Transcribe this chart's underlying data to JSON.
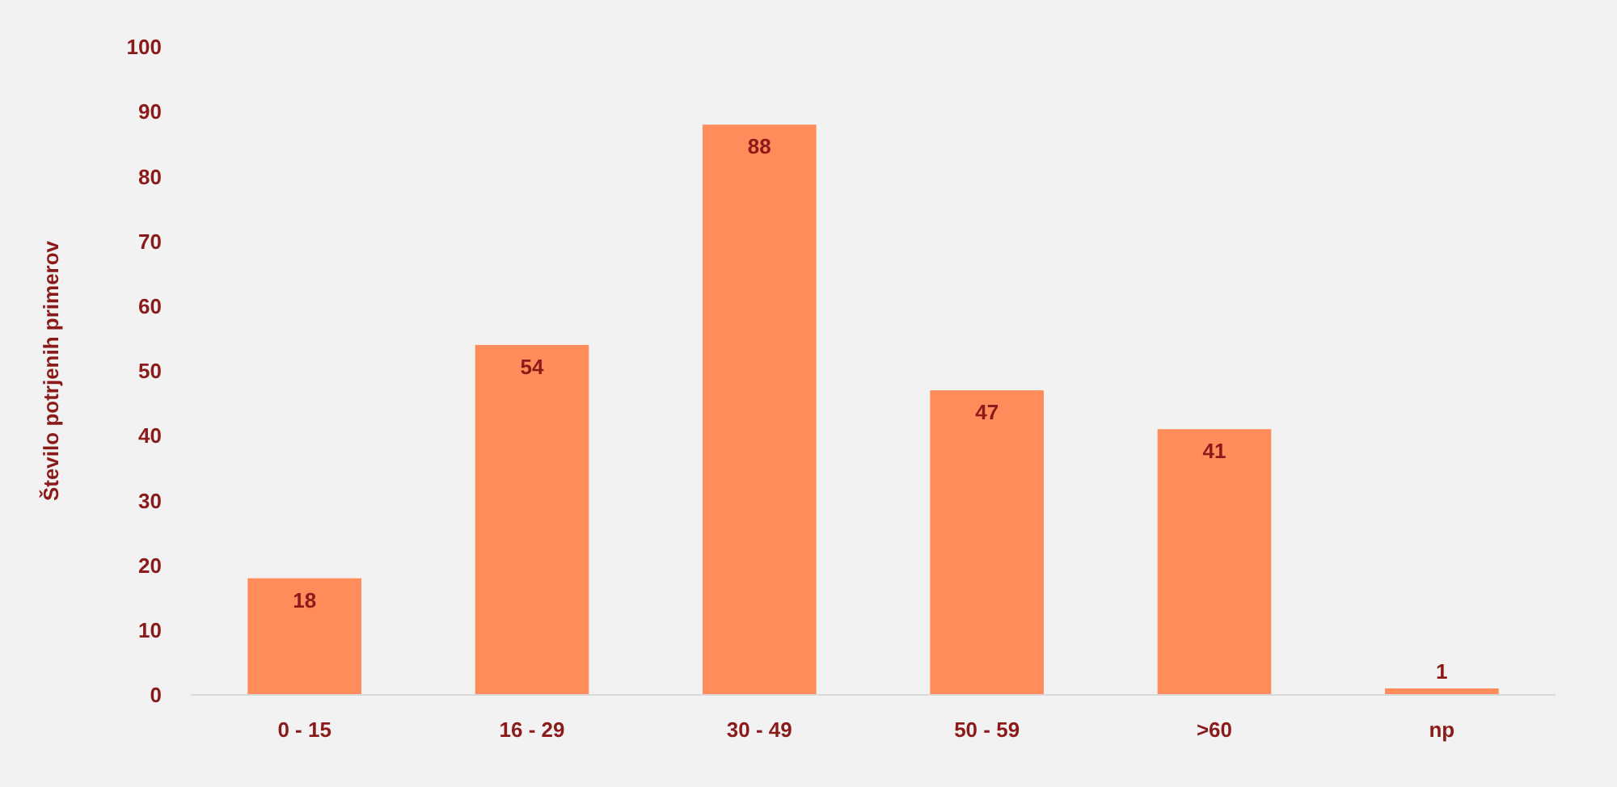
{
  "chart_data": {
    "type": "bar",
    "ylabel": "Število potrjenih primerov",
    "categories": [
      "0 - 15",
      "16 - 29",
      "30 - 49",
      "50 - 59",
      ">60",
      "np"
    ],
    "values": [
      18,
      54,
      88,
      47,
      41,
      1
    ],
    "color": "#ff8c5a",
    "ylim": [
      0,
      100
    ],
    "yticks": [
      0,
      10,
      20,
      30,
      40,
      50,
      60,
      70,
      80,
      90,
      100
    ],
    "grid": false,
    "data_labels": true
  }
}
